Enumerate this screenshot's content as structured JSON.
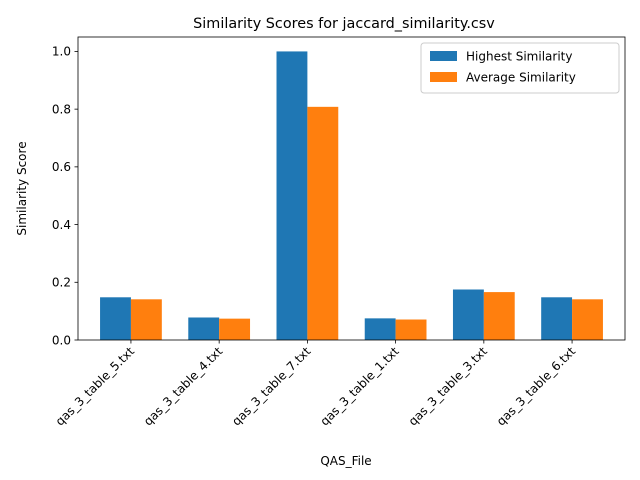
{
  "chart_data": {
    "type": "bar",
    "title": "Similarity Scores for jaccard_similarity.csv",
    "xlabel": "QAS_File",
    "ylabel": "Similarity Score",
    "categories": [
      "qas_3_table_5.txt",
      "qas_3_table_4.txt",
      "qas_3_table_7.txt",
      "qas_3_table_1.txt",
      "qas_3_table_3.txt",
      "qas_3_table_6.txt"
    ],
    "series": [
      {
        "name": "Highest Similarity",
        "color": "#1f77b4",
        "values": [
          0.148,
          0.078,
          1.0,
          0.075,
          0.175,
          0.148
        ]
      },
      {
        "name": "Average Similarity",
        "color": "#ff7f0e",
        "values": [
          0.141,
          0.074,
          0.808,
          0.071,
          0.166,
          0.141
        ]
      }
    ],
    "ylim": [
      0,
      1.05
    ],
    "yticks": [
      0.0,
      0.2,
      0.4,
      0.6,
      0.8,
      1.0
    ],
    "ytick_labels": [
      "0.0",
      "0.2",
      "0.4",
      "0.6",
      "0.8",
      "1.0"
    ],
    "legend": "top-right",
    "grid": false
  }
}
